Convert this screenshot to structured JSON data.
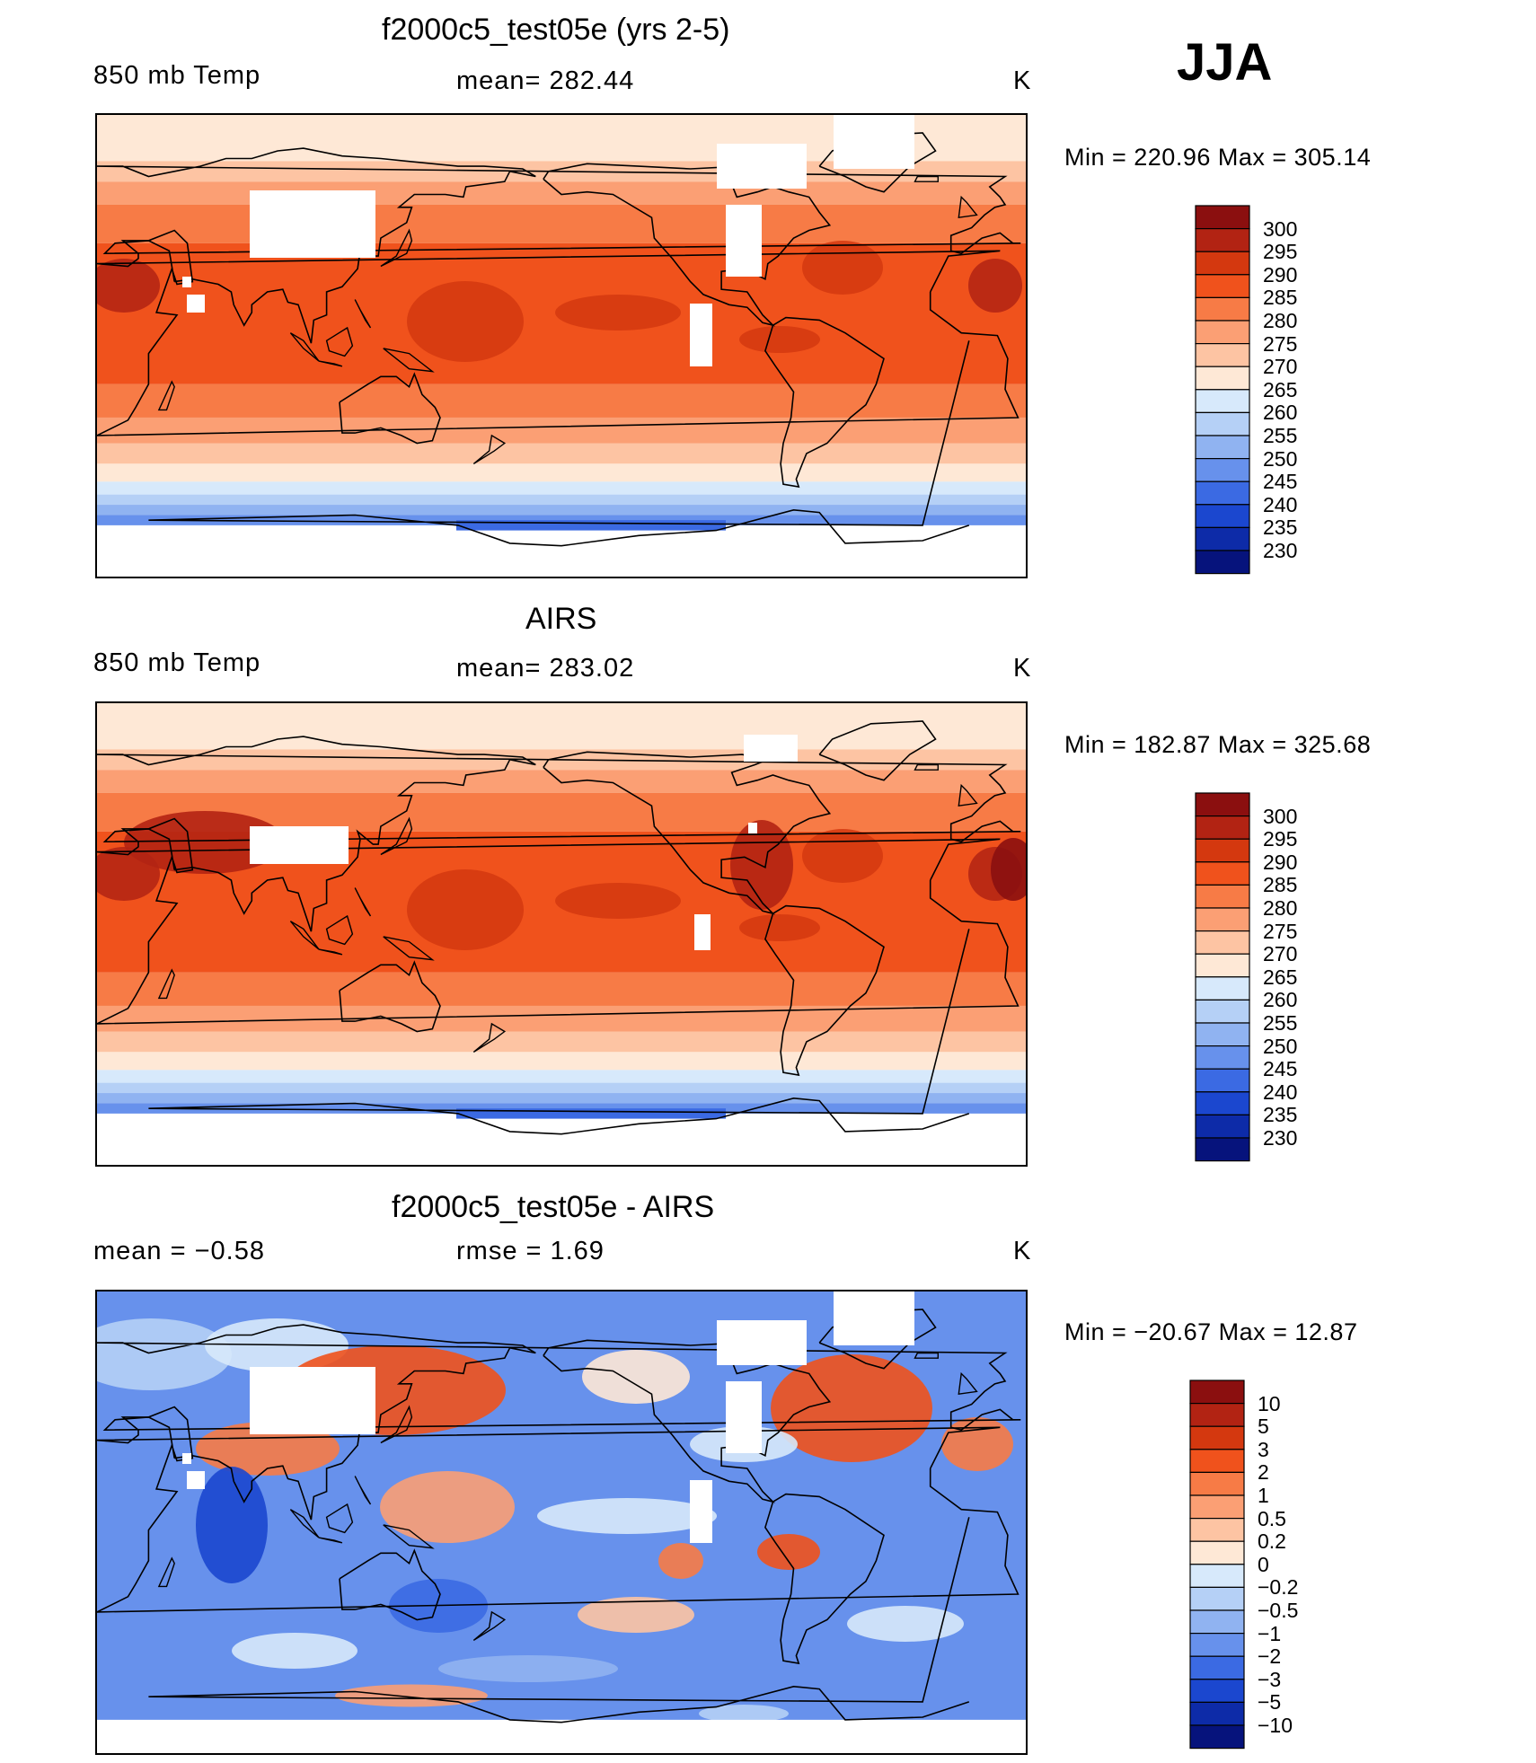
{
  "season": "JJA",
  "panels": [
    {
      "title": "f2000c5_test05e (yrs 2-5)",
      "left_label": "850 mb Temp",
      "center_label": "mean= 282.44",
      "units": "K",
      "minmax": "Min  =  220.96  Max  =  305.14",
      "colorbar": {
        "labels": [
          "300",
          "295",
          "290",
          "285",
          "280",
          "275",
          "270",
          "265",
          "260",
          "255",
          "250",
          "245",
          "240",
          "235",
          "230"
        ],
        "colors": [
          "#8b0f0f",
          "#b22313",
          "#d4380f",
          "#f0521c",
          "#f77b46",
          "#fb9f74",
          "#fdc4a3",
          "#fee8d6",
          "#d7e9fb",
          "#b5d0f6",
          "#90b3f1",
          "#6791ec",
          "#3b6ae3",
          "#1b47cf",
          "#0d2ba8",
          "#06137c"
        ]
      },
      "map": {
        "variant": "model"
      }
    },
    {
      "title": "AIRS",
      "left_label": "850 mb Temp",
      "center_label": "mean= 283.02",
      "units": "K",
      "minmax": "Min  =  182.87  Max  =  325.68",
      "colorbar": {
        "labels": [
          "300",
          "295",
          "290",
          "285",
          "280",
          "275",
          "270",
          "265",
          "260",
          "255",
          "250",
          "245",
          "240",
          "235",
          "230"
        ],
        "colors": [
          "#8b0f0f",
          "#b22313",
          "#d4380f",
          "#f0521c",
          "#f77b46",
          "#fb9f74",
          "#fdc4a3",
          "#fee8d6",
          "#d7e9fb",
          "#b5d0f6",
          "#90b3f1",
          "#6791ec",
          "#3b6ae3",
          "#1b47cf",
          "#0d2ba8",
          "#06137c"
        ]
      },
      "map": {
        "variant": "obs"
      }
    },
    {
      "title": "f2000c5_test05e - AIRS",
      "left_label": "mean =    −0.58",
      "center_label": "rmse =     1.69",
      "units": "K",
      "minmax": "Min  = −20.67  Max  =    12.87",
      "colorbar": {
        "labels": [
          "10",
          "5",
          "3",
          "2",
          "1",
          "0.5",
          "0.2",
          "0",
          "−0.2",
          "−0.5",
          "−1",
          "−2",
          "−3",
          "−5",
          "−10"
        ],
        "colors": [
          "#8b0f0f",
          "#b22313",
          "#d4380f",
          "#f0521c",
          "#f77b46",
          "#fb9f74",
          "#fdc4a3",
          "#fee8d6",
          "#d7e9fb",
          "#b5d0f6",
          "#90b3f1",
          "#6791ec",
          "#3b6ae3",
          "#1b47cf",
          "#0d2ba8",
          "#06137c"
        ]
      },
      "map": {
        "variant": "diff"
      }
    }
  ]
}
